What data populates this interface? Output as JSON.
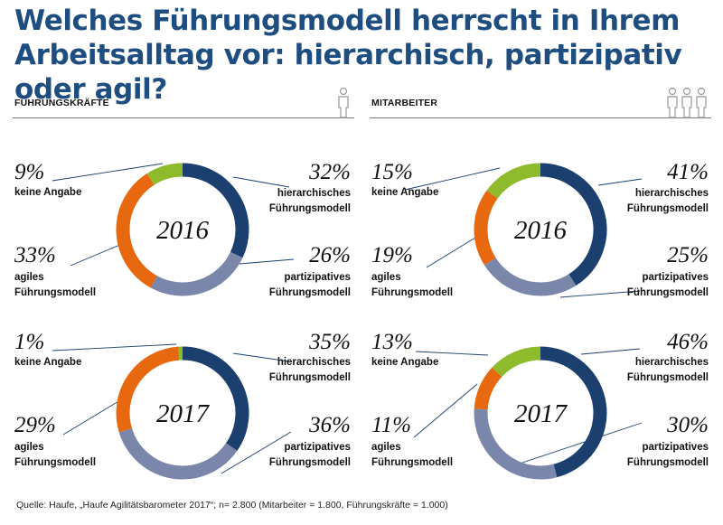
{
  "title": "Welches Führungsmodell herrscht in Ihrem Arbeitsalltag vor: hierarchisch, partizipativ oder agil?",
  "sections": {
    "left": "FÜHRUNGSKRÄFTE",
    "right": "MITARBEITER"
  },
  "labels": {
    "keine": "keine Angabe",
    "hier1": "hierarchisches",
    "part1": "partizipatives",
    "agil1": "agiles",
    "modell": "Führungsmodell"
  },
  "colors": {
    "hierarchisch": "#1b3f6e",
    "partizipativ": "#7a86aa",
    "agil": "#e8680f",
    "keine_angabe": "#8dbb2c",
    "title": "#1e4d80"
  },
  "chart_data": [
    {
      "type": "pie",
      "group": "Führungskräfte",
      "year": "2016",
      "categories": [
        "hierarchisches Führungsmodell",
        "partizipatives Führungsmodell",
        "agiles Führungsmodell",
        "keine Angabe"
      ],
      "values": [
        32,
        26,
        33,
        9
      ],
      "labels": [
        "32%",
        "26%",
        "33%",
        "9%"
      ]
    },
    {
      "type": "pie",
      "group": "Mitarbeiter",
      "year": "2016",
      "categories": [
        "hierarchisches Führungsmodell",
        "partizipatives Führungsmodell",
        "agiles Führungsmodell",
        "keine Angabe"
      ],
      "values": [
        41,
        25,
        19,
        15
      ],
      "labels": [
        "41%",
        "25%",
        "19%",
        "15%"
      ]
    },
    {
      "type": "pie",
      "group": "Führungskräfte",
      "year": "2017",
      "categories": [
        "hierarchisches Führungsmodell",
        "partizipatives Führungsmodell",
        "agiles Führungsmodell",
        "keine Angabe"
      ],
      "values": [
        35,
        36,
        29,
        1
      ],
      "labels": [
        "35%",
        "36%",
        "29%",
        "1%"
      ]
    },
    {
      "type": "pie",
      "group": "Mitarbeiter",
      "year": "2017",
      "categories": [
        "hierarchisches Führungsmodell",
        "partizipatives Führungsmodell",
        "agiles Führungsmodell",
        "keine Angabe"
      ],
      "values": [
        46,
        30,
        11,
        13
      ],
      "labels": [
        "46%",
        "30%",
        "11%",
        "13%"
      ]
    }
  ],
  "footer": "Quelle: Haufe, „Haufe Agilitätsbarometer 2017“; n= 2.800 (Mitarbeiter = 1.800, Führungskräfte = 1.000)"
}
